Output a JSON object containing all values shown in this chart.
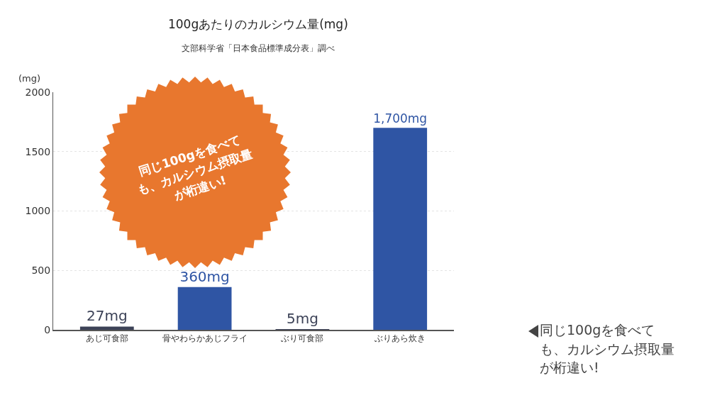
{
  "chart_data": {
    "type": "bar",
    "title": "100gあたりのカルシウム量(mg)",
    "subtitle": "文部科学省「日本食品標準成分表」調べ",
    "ylabel": "(mg)",
    "categories": [
      "あじ可食部",
      "骨やわらかあじフライ",
      "ぶり可食部",
      "ぶりあら炊き"
    ],
    "values": [
      27,
      360,
      5,
      1700
    ],
    "colors": [
      "#3c4257",
      "#2f55a4",
      "#3c4257",
      "#2f55a4"
    ],
    "value_labels": [
      "27mg",
      "360mg",
      "5mg",
      "1,700mg"
    ],
    "ylim": [
      0,
      2000
    ],
    "yticks": [
      0,
      500,
      1000,
      1500,
      2000
    ],
    "grid": "y",
    "annotations": [
      "同じ100gを食べても、カルシウム摂取量が桁違い!",
      "同じ100gを食べても、カルシウム摂取量が桁違い!"
    ]
  }
}
